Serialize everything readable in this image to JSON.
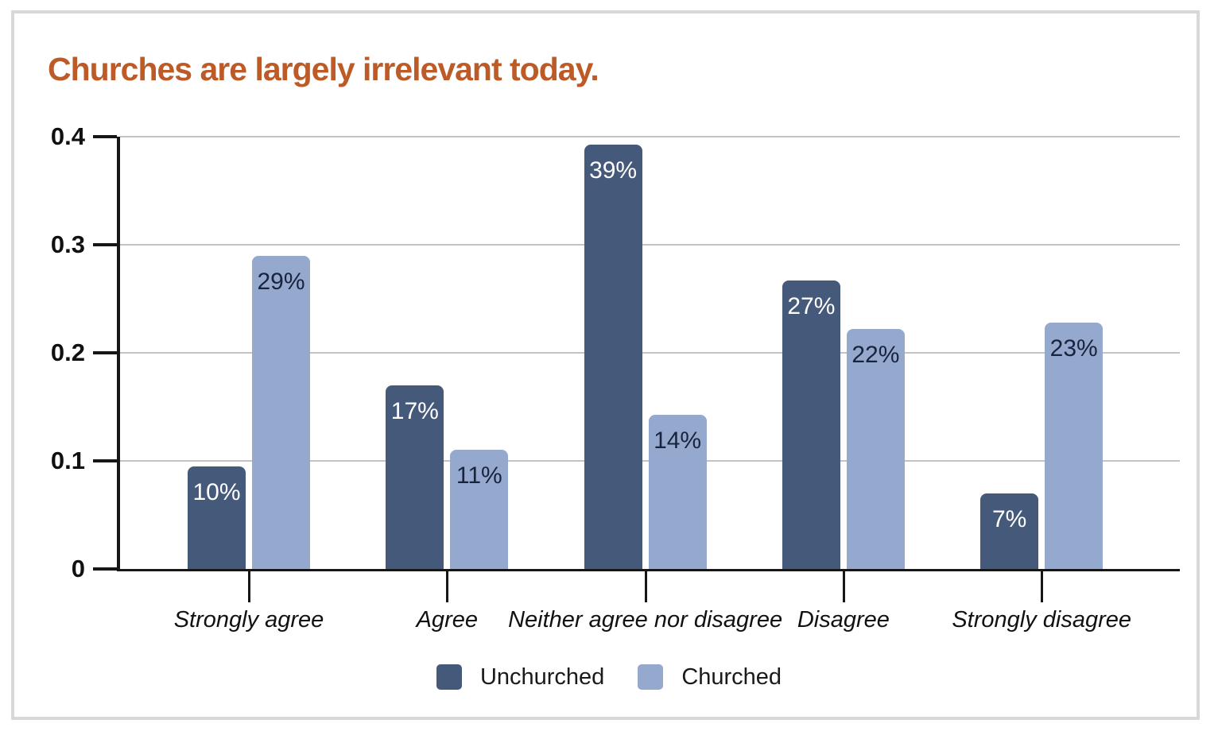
{
  "title": {
    "text": "Churches are largely irrelevant today.",
    "color": "#bd5b28"
  },
  "frame_color": "#d8d8d8",
  "chart_data": {
    "type": "bar",
    "title": "Churches are largely irrelevant today.",
    "categories": [
      "Strongly agree",
      "Agree",
      "Neither agree nor disagree",
      "Disagree",
      "Strongly disagree"
    ],
    "series": [
      {
        "name": "Unchurched",
        "color": "#45597a",
        "values": [
          0.1,
          0.17,
          0.39,
          0.27,
          0.07
        ],
        "value_labels": [
          "10%",
          "17%",
          "39%",
          "27%",
          "7%"
        ],
        "label_color": "#ffffff"
      },
      {
        "name": "Churched",
        "color": "#95a8cd",
        "values": [
          0.29,
          0.11,
          0.14,
          0.22,
          0.23
        ],
        "value_labels": [
          "29%",
          "11%",
          "14%",
          "22%",
          "23%"
        ],
        "label_color": "#18243e"
      }
    ],
    "drawn_values": [
      [
        0.095,
        0.29
      ],
      [
        0.17,
        0.11
      ],
      [
        0.393,
        0.143
      ],
      [
        0.267,
        0.222
      ],
      [
        0.07,
        0.228
      ]
    ],
    "xlabel": "",
    "ylabel": "",
    "ylim": [
      0,
      0.4
    ],
    "yticks": [
      {
        "label": "0.4",
        "value": 0.4
      },
      {
        "label": "0.3",
        "value": 0.3
      },
      {
        "label": "0.2",
        "value": 0.2
      },
      {
        "label": "0.1",
        "value": 0.1
      },
      {
        "label": "0",
        "value": 0.0
      }
    ],
    "grid": true,
    "legend_position": "bottom",
    "axis_color": "#161616",
    "gridline_color": "#c3c3c3"
  },
  "legend": {
    "items": [
      {
        "label": "Unchurched",
        "color": "#45597a"
      },
      {
        "label": "Churched",
        "color": "#95a8cd"
      }
    ]
  }
}
